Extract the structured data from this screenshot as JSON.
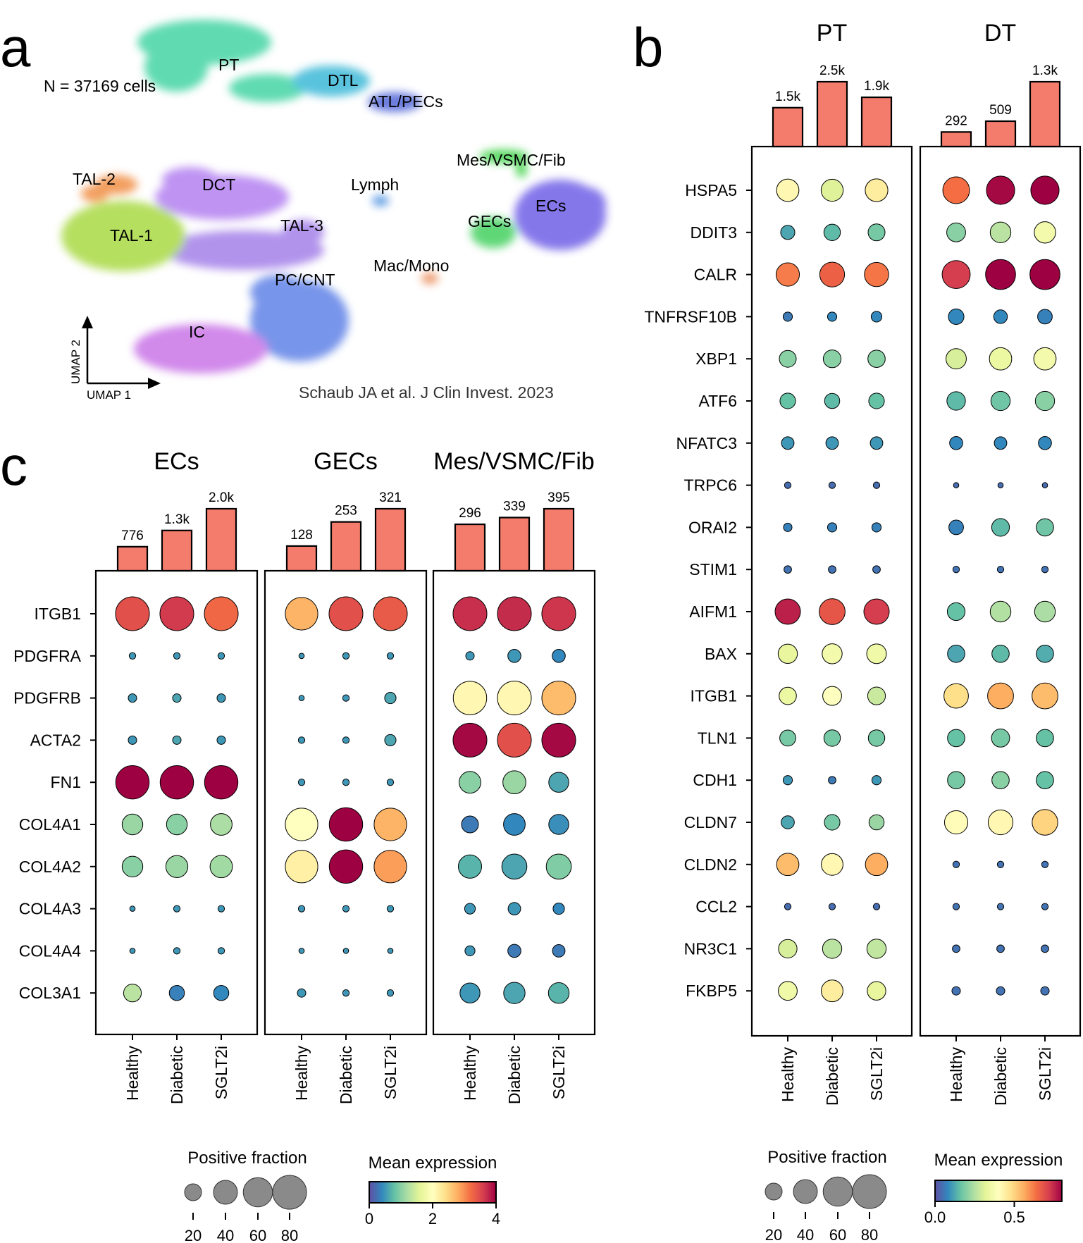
{
  "figure": {
    "panel_letters": [
      "a",
      "b",
      "c"
    ]
  },
  "umap": {
    "n_cells_label": "N = 37169 cells",
    "axis_x": "UMAP 1",
    "axis_y": "UMAP 2",
    "credit": "Schaub JA et al. J Clin Invest. 2023",
    "clusters": [
      {
        "label": "PT",
        "color": "#3ed3a0"
      },
      {
        "label": "DTL",
        "color": "#36b6d6"
      },
      {
        "label": "ATL/PECs",
        "color": "#4a5fd6"
      },
      {
        "label": "Mes/VSMC/Fib",
        "color": "#36d040"
      },
      {
        "label": "TAL-2",
        "color": "#f08a3c"
      },
      {
        "label": "DCT",
        "color": "#b07cf0"
      },
      {
        "label": "Lymph",
        "color": "#4a8ee0"
      },
      {
        "label": "ECs",
        "color": "#6a5ae6"
      },
      {
        "label": "TAL-3",
        "color": "#a07ce8"
      },
      {
        "label": "GECs",
        "color": "#3dcf5a"
      },
      {
        "label": "TAL-1",
        "color": "#a6d83c"
      },
      {
        "label": "Mac/Mono",
        "color": "#e8844e"
      },
      {
        "label": "PC/CNT",
        "color": "#5a7ee6"
      },
      {
        "label": "IC",
        "color": "#c770e6"
      }
    ]
  },
  "colors": {
    "bar": "#f47c6c",
    "colormap": [
      "#5e4fa2",
      "#3288bd",
      "#66c2a5",
      "#abdda4",
      "#e6f598",
      "#ffffbf",
      "#fee08b",
      "#fdae61",
      "#f46d43",
      "#d53e4f",
      "#9e0142"
    ]
  },
  "chart_data": [
    {
      "type": "dotplot",
      "panel": "b",
      "groups": [
        "PT",
        "DT"
      ],
      "conditions": [
        "Healthy",
        "Diabetic",
        "SGLT2i"
      ],
      "cell_counts": {
        "PT": [
          1500,
          2500,
          1900
        ],
        "DT": [
          292,
          509,
          1300
        ]
      },
      "cell_count_labels": {
        "PT": [
          "1.5k",
          "2.5k",
          "1.9k"
        ],
        "DT": [
          "292",
          "509",
          "1.3k"
        ]
      },
      "genes": [
        "HSPA5",
        "DDIT3",
        "CALR",
        "TNFRSF10B",
        "XBP1",
        "ATF6",
        "NFATC3",
        "TRPC6",
        "ORAI2",
        "STIM1",
        "AIFM1",
        "BAX",
        "ITGB1",
        "TLN1",
        "CDH1",
        "CLDN7",
        "CLDN2",
        "CCL2",
        "NR3C1",
        "FKBP5"
      ],
      "mean_expression": {
        "PT": [
          [
            0.42,
            0.31,
            0.45
          ],
          [
            0.12,
            0.15,
            0.18
          ],
          [
            0.62,
            0.66,
            0.63
          ],
          [
            0.06,
            0.08,
            0.08
          ],
          [
            0.2,
            0.2,
            0.2
          ],
          [
            0.16,
            0.15,
            0.16
          ],
          [
            0.1,
            0.1,
            0.1
          ],
          [
            0.04,
            0.04,
            0.04
          ],
          [
            0.07,
            0.07,
            0.07
          ],
          [
            0.05,
            0.05,
            0.05
          ],
          [
            0.76,
            0.68,
            0.72
          ],
          [
            0.33,
            0.36,
            0.35
          ],
          [
            0.34,
            0.4,
            0.28
          ],
          [
            0.18,
            0.18,
            0.18
          ],
          [
            0.1,
            0.06,
            0.1
          ],
          [
            0.12,
            0.18,
            0.22
          ],
          [
            0.54,
            0.42,
            0.56
          ],
          [
            0.04,
            0.04,
            0.04
          ],
          [
            0.3,
            0.26,
            0.27
          ],
          [
            0.35,
            0.45,
            0.33
          ]
        ],
        "DT": [
          [
            0.64,
            0.79,
            0.8
          ],
          [
            0.2,
            0.26,
            0.36
          ],
          [
            0.72,
            0.8,
            0.82
          ],
          [
            0.08,
            0.08,
            0.07
          ],
          [
            0.3,
            0.34,
            0.36
          ],
          [
            0.15,
            0.17,
            0.2
          ],
          [
            0.08,
            0.08,
            0.08
          ],
          [
            0.04,
            0.04,
            0.04
          ],
          [
            0.07,
            0.15,
            0.17
          ],
          [
            0.05,
            0.05,
            0.05
          ],
          [
            0.16,
            0.25,
            0.24
          ],
          [
            0.12,
            0.15,
            0.13
          ],
          [
            0.48,
            0.56,
            0.54
          ],
          [
            0.16,
            0.18,
            0.16
          ],
          [
            0.18,
            0.2,
            0.16
          ],
          [
            0.41,
            0.42,
            0.5
          ],
          [
            0.05,
            0.05,
            0.05
          ],
          [
            0.05,
            0.05,
            0.05
          ],
          [
            0.05,
            0.05,
            0.05
          ],
          [
            0.05,
            0.05,
            0.05
          ]
        ]
      },
      "positive_fraction": {
        "PT": [
          [
            35,
            34,
            36
          ],
          [
            14,
            19,
            20
          ],
          [
            38,
            43,
            41
          ],
          [
            6,
            6,
            8
          ],
          [
            20,
            22,
            21
          ],
          [
            17,
            16,
            17
          ],
          [
            11,
            11,
            11
          ],
          [
            3,
            3,
            3
          ],
          [
            5,
            6,
            6
          ],
          [
            4,
            4,
            4
          ],
          [
            45,
            47,
            45
          ],
          [
            26,
            28,
            27
          ],
          [
            21,
            25,
            22
          ],
          [
            18,
            19,
            19
          ],
          [
            6,
            4,
            6
          ],
          [
            12,
            17,
            16
          ],
          [
            35,
            33,
            35
          ],
          [
            3,
            3,
            3
          ],
          [
            24,
            26,
            26
          ],
          [
            25,
            33,
            24
          ]
        ],
        "DT": [
          [
            50,
            56,
            56
          ],
          [
            25,
            30,
            32
          ],
          [
            55,
            63,
            63
          ],
          [
            17,
            13,
            15
          ],
          [
            29,
            35,
            35
          ],
          [
            24,
            26,
            26
          ],
          [
            12,
            11,
            12
          ],
          [
            2,
            2,
            2
          ],
          [
            15,
            22,
            21
          ],
          [
            3,
            3,
            3
          ],
          [
            22,
            30,
            30
          ],
          [
            21,
            21,
            21
          ],
          [
            42,
            47,
            47
          ],
          [
            21,
            23,
            21
          ],
          [
            21,
            21,
            21
          ],
          [
            38,
            43,
            46
          ],
          [
            3,
            3,
            3
          ],
          [
            3,
            3,
            3
          ],
          [
            4,
            4,
            4
          ],
          [
            5,
            5,
            5
          ]
        ]
      },
      "legend": {
        "size_title": "Positive fraction",
        "size_ticks": [
          20,
          40,
          60,
          80
        ],
        "color_title": "Mean expression",
        "color_ticks": [
          "0.0",
          "0.5"
        ],
        "color_range": [
          0,
          0.8
        ]
      }
    },
    {
      "type": "dotplot",
      "panel": "c",
      "groups": [
        "ECs",
        "GECs",
        "Mes/VSMC/Fib"
      ],
      "conditions": [
        "Healthy",
        "Diabetic",
        "SGLT2i"
      ],
      "cell_counts": {
        "ECs": [
          776,
          1300,
          2000
        ],
        "GECs": [
          128,
          253,
          321
        ],
        "Mes/VSMC/Fib": [
          296,
          339,
          395
        ]
      },
      "cell_count_labels": {
        "ECs": [
          "776",
          "1.3k",
          "2.0k"
        ],
        "GECs": [
          "128",
          "253",
          "321"
        ],
        "Mes/VSMC/Fib": [
          "296",
          "339",
          "395"
        ]
      },
      "genes": [
        "ITGB1",
        "PDGFRA",
        "PDGFRB",
        "ACTA2",
        "FN1",
        "COL4A1",
        "COL4A2",
        "COL4A3",
        "COL4A4",
        "COL3A1"
      ],
      "mean_expression": {
        "ECs": [
          [
            3.45,
            3.62,
            3.25
          ],
          [
            0.5,
            0.5,
            0.5
          ],
          [
            0.5,
            0.6,
            0.5
          ],
          [
            0.5,
            0.6,
            0.5
          ],
          [
            4.0,
            4.0,
            4.0
          ],
          [
            1.1,
            1.0,
            1.2
          ],
          [
            1.0,
            1.1,
            1.15
          ],
          [
            0.5,
            0.5,
            0.5
          ],
          [
            0.5,
            0.5,
            0.5
          ],
          [
            1.3,
            0.35,
            0.4
          ]
        ],
        "GECs": [
          [
            2.75,
            3.45,
            3.35
          ],
          [
            0.5,
            0.5,
            0.5
          ],
          [
            0.5,
            0.5,
            0.6
          ],
          [
            0.5,
            0.5,
            0.6
          ],
          [
            0.5,
            0.5,
            0.5
          ],
          [
            2.0,
            4.0,
            2.75
          ],
          [
            2.2,
            4.0,
            2.9
          ],
          [
            0.5,
            0.5,
            0.5
          ],
          [
            0.5,
            0.5,
            0.5
          ],
          [
            0.5,
            0.5,
            0.5
          ]
        ],
        "Mes/VSMC/Fib": [
          [
            3.7,
            3.72,
            3.65
          ],
          [
            0.5,
            0.5,
            0.4
          ],
          [
            2.1,
            2.1,
            2.7
          ],
          [
            3.95,
            3.45,
            3.95
          ],
          [
            1.0,
            1.1,
            0.6
          ],
          [
            0.3,
            0.4,
            0.45
          ],
          [
            0.7,
            0.6,
            0.95
          ],
          [
            0.5,
            0.5,
            0.4
          ],
          [
            0.5,
            0.3,
            0.3
          ],
          [
            0.5,
            0.6,
            0.7
          ]
        ]
      },
      "positive_fraction": {
        "ECs": [
          [
            80,
            80,
            80
          ],
          [
            3,
            3,
            3
          ],
          [
            5,
            5,
            5
          ],
          [
            5,
            5,
            5
          ],
          [
            78,
            78,
            78
          ],
          [
            30,
            30,
            33
          ],
          [
            30,
            34,
            35
          ],
          [
            2,
            3,
            3
          ],
          [
            2,
            3,
            3
          ],
          [
            22,
            16,
            16
          ]
        ],
        "GECs": [
          [
            74,
            80,
            80
          ],
          [
            2,
            3,
            3
          ],
          [
            2,
            3,
            9
          ],
          [
            3,
            3,
            9
          ],
          [
            3,
            3,
            3
          ],
          [
            74,
            78,
            74
          ],
          [
            74,
            78,
            74
          ],
          [
            3,
            3,
            3
          ],
          [
            2,
            2,
            2
          ],
          [
            5,
            3,
            3
          ]
        ],
        "Mes/VSMC/Fib": [
          [
            80,
            80,
            80
          ],
          [
            5,
            12,
            12
          ],
          [
            78,
            80,
            80
          ],
          [
            80,
            80,
            80
          ],
          [
            33,
            37,
            28
          ],
          [
            20,
            33,
            28
          ],
          [
            38,
            44,
            44
          ],
          [
            8,
            11,
            9
          ],
          [
            7,
            12,
            11
          ],
          [
            28,
            32,
            30
          ]
        ]
      },
      "legend": {
        "size_title": "Positive fraction",
        "size_ticks": [
          20,
          40,
          60,
          80
        ],
        "color_title": "Mean expression",
        "color_ticks": [
          "0",
          "2",
          "4"
        ],
        "color_range": [
          0,
          4
        ]
      }
    }
  ]
}
